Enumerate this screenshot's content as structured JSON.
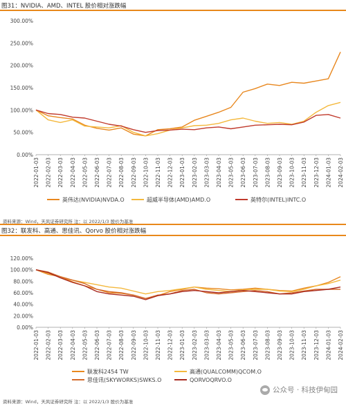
{
  "figures": [
    {
      "title": "图31：NVIDIA、AMD、INTEL 股价相对涨跌幅",
      "source": "资料来源：Wind，天风证券研究所  注：以 2022/1/3 股价为基准"
    },
    {
      "title": "图32：联发科、高通、思佳讯、Qorvo 股价相对涨跌幅",
      "source": "资料来源：Wind，天风证券研究所  注：以 2022/1/3 股价为基准"
    }
  ],
  "watermark": {
    "text": "公众号 · 科技伊甸园",
    "icon": "wechat-icon"
  },
  "chart_data": [
    {
      "type": "line",
      "title": "",
      "xlabel": "",
      "ylabel": "",
      "ylim": [
        0,
        300
      ],
      "yticks": [
        "0.00%",
        "50.00%",
        "100.00%",
        "150.00%",
        "200.00%",
        "250.00%",
        "300.00%"
      ],
      "grid": false,
      "legend_position": "bottom",
      "x": [
        "2022-01-03",
        "2022-02-03",
        "2022-03-03",
        "2022-04-03",
        "2022-05-03",
        "2022-06-03",
        "2022-07-03",
        "2022-08-03",
        "2022-09-03",
        "2022-10-03",
        "2022-11-03",
        "2022-12-03",
        "2023-01-03",
        "2023-02-03",
        "2023-03-03",
        "2023-04-03",
        "2023-05-03",
        "2023-06-03",
        "2023-07-03",
        "2023-08-03",
        "2023-09-03",
        "2023-10-03",
        "2023-11-03",
        "2023-12-03",
        "2024-01-03",
        "2024-02-03"
      ],
      "series": [
        {
          "name": "英伟达(NVIDIA)NVDA.O",
          "color": "#e8871e",
          "values": [
            100,
            87,
            83,
            80,
            66,
            59,
            55,
            60,
            46,
            42,
            56,
            58,
            62,
            77,
            86,
            95,
            106,
            140,
            148,
            158,
            155,
            162,
            160,
            165,
            170,
            230
          ]
        },
        {
          "name": "超威半导体(AMD)AMD.O",
          "color": "#f4b83c",
          "values": [
            100,
            78,
            72,
            78,
            64,
            62,
            60,
            65,
            50,
            42,
            47,
            55,
            60,
            65,
            66,
            70,
            78,
            82,
            75,
            70,
            72,
            68,
            75,
            95,
            110,
            117
          ]
        },
        {
          "name": "英特尔(INTEL)INTC.O",
          "color": "#c0392b",
          "values": [
            100,
            92,
            90,
            84,
            82,
            75,
            68,
            64,
            56,
            50,
            54,
            55,
            57,
            56,
            60,
            62,
            58,
            62,
            66,
            67,
            68,
            67,
            73,
            88,
            90,
            82
          ]
        }
      ]
    },
    {
      "type": "line",
      "title": "",
      "xlabel": "",
      "ylabel": "",
      "ylim": [
        0,
        120
      ],
      "yticks": [
        "0.00%",
        "20.00%",
        "40.00%",
        "60.00%",
        "80.00%",
        "100.00%",
        "120.00%"
      ],
      "grid": false,
      "legend_position": "bottom",
      "x": [
        "2022-01-03",
        "2022-02-03",
        "2022-03-03",
        "2022-04-03",
        "2022-05-03",
        "2022-06-03",
        "2022-07-03",
        "2022-08-03",
        "2022-09-03",
        "2022-10-03",
        "2022-11-03",
        "2022-12-03",
        "2023-01-03",
        "2023-02-03",
        "2023-03-03",
        "2023-04-03",
        "2023-05-03",
        "2023-06-03",
        "2023-07-03",
        "2023-08-03",
        "2023-09-03",
        "2023-10-03",
        "2023-11-03",
        "2023-12-03",
        "2024-01-03",
        "2024-02-03"
      ],
      "series": [
        {
          "name": "联发科2454 TW",
          "color": "#e8871e",
          "values": [
            100,
            92,
            88,
            79,
            72,
            66,
            60,
            59,
            56,
            50,
            55,
            62,
            66,
            70,
            68,
            67,
            65,
            66,
            68,
            66,
            64,
            63,
            68,
            72,
            78,
            88
          ]
        },
        {
          "name": "高通(QUALCOMM)QCOM.O",
          "color": "#f4b83c",
          "values": [
            100,
            94,
            88,
            82,
            78,
            74,
            70,
            68,
            63,
            58,
            62,
            64,
            67,
            70,
            66,
            64,
            62,
            65,
            66,
            66,
            63,
            62,
            66,
            72,
            76,
            82
          ]
        },
        {
          "name": "思佳讯(SKYWORKS)SWKS.O",
          "color": "#d46a2a",
          "values": [
            100,
            96,
            88,
            82,
            76,
            66,
            62,
            60,
            56,
            50,
            56,
            58,
            64,
            66,
            60,
            58,
            60,
            62,
            64,
            62,
            58,
            60,
            63,
            66,
            66,
            66
          ]
        },
        {
          "name": "QORVOQRVO.O",
          "color": "#a8281e",
          "values": [
            100,
            95,
            86,
            78,
            72,
            62,
            58,
            56,
            54,
            48,
            55,
            58,
            62,
            64,
            62,
            60,
            62,
            64,
            62,
            60,
            58,
            58,
            62,
            64,
            66,
            70
          ]
        }
      ]
    }
  ]
}
